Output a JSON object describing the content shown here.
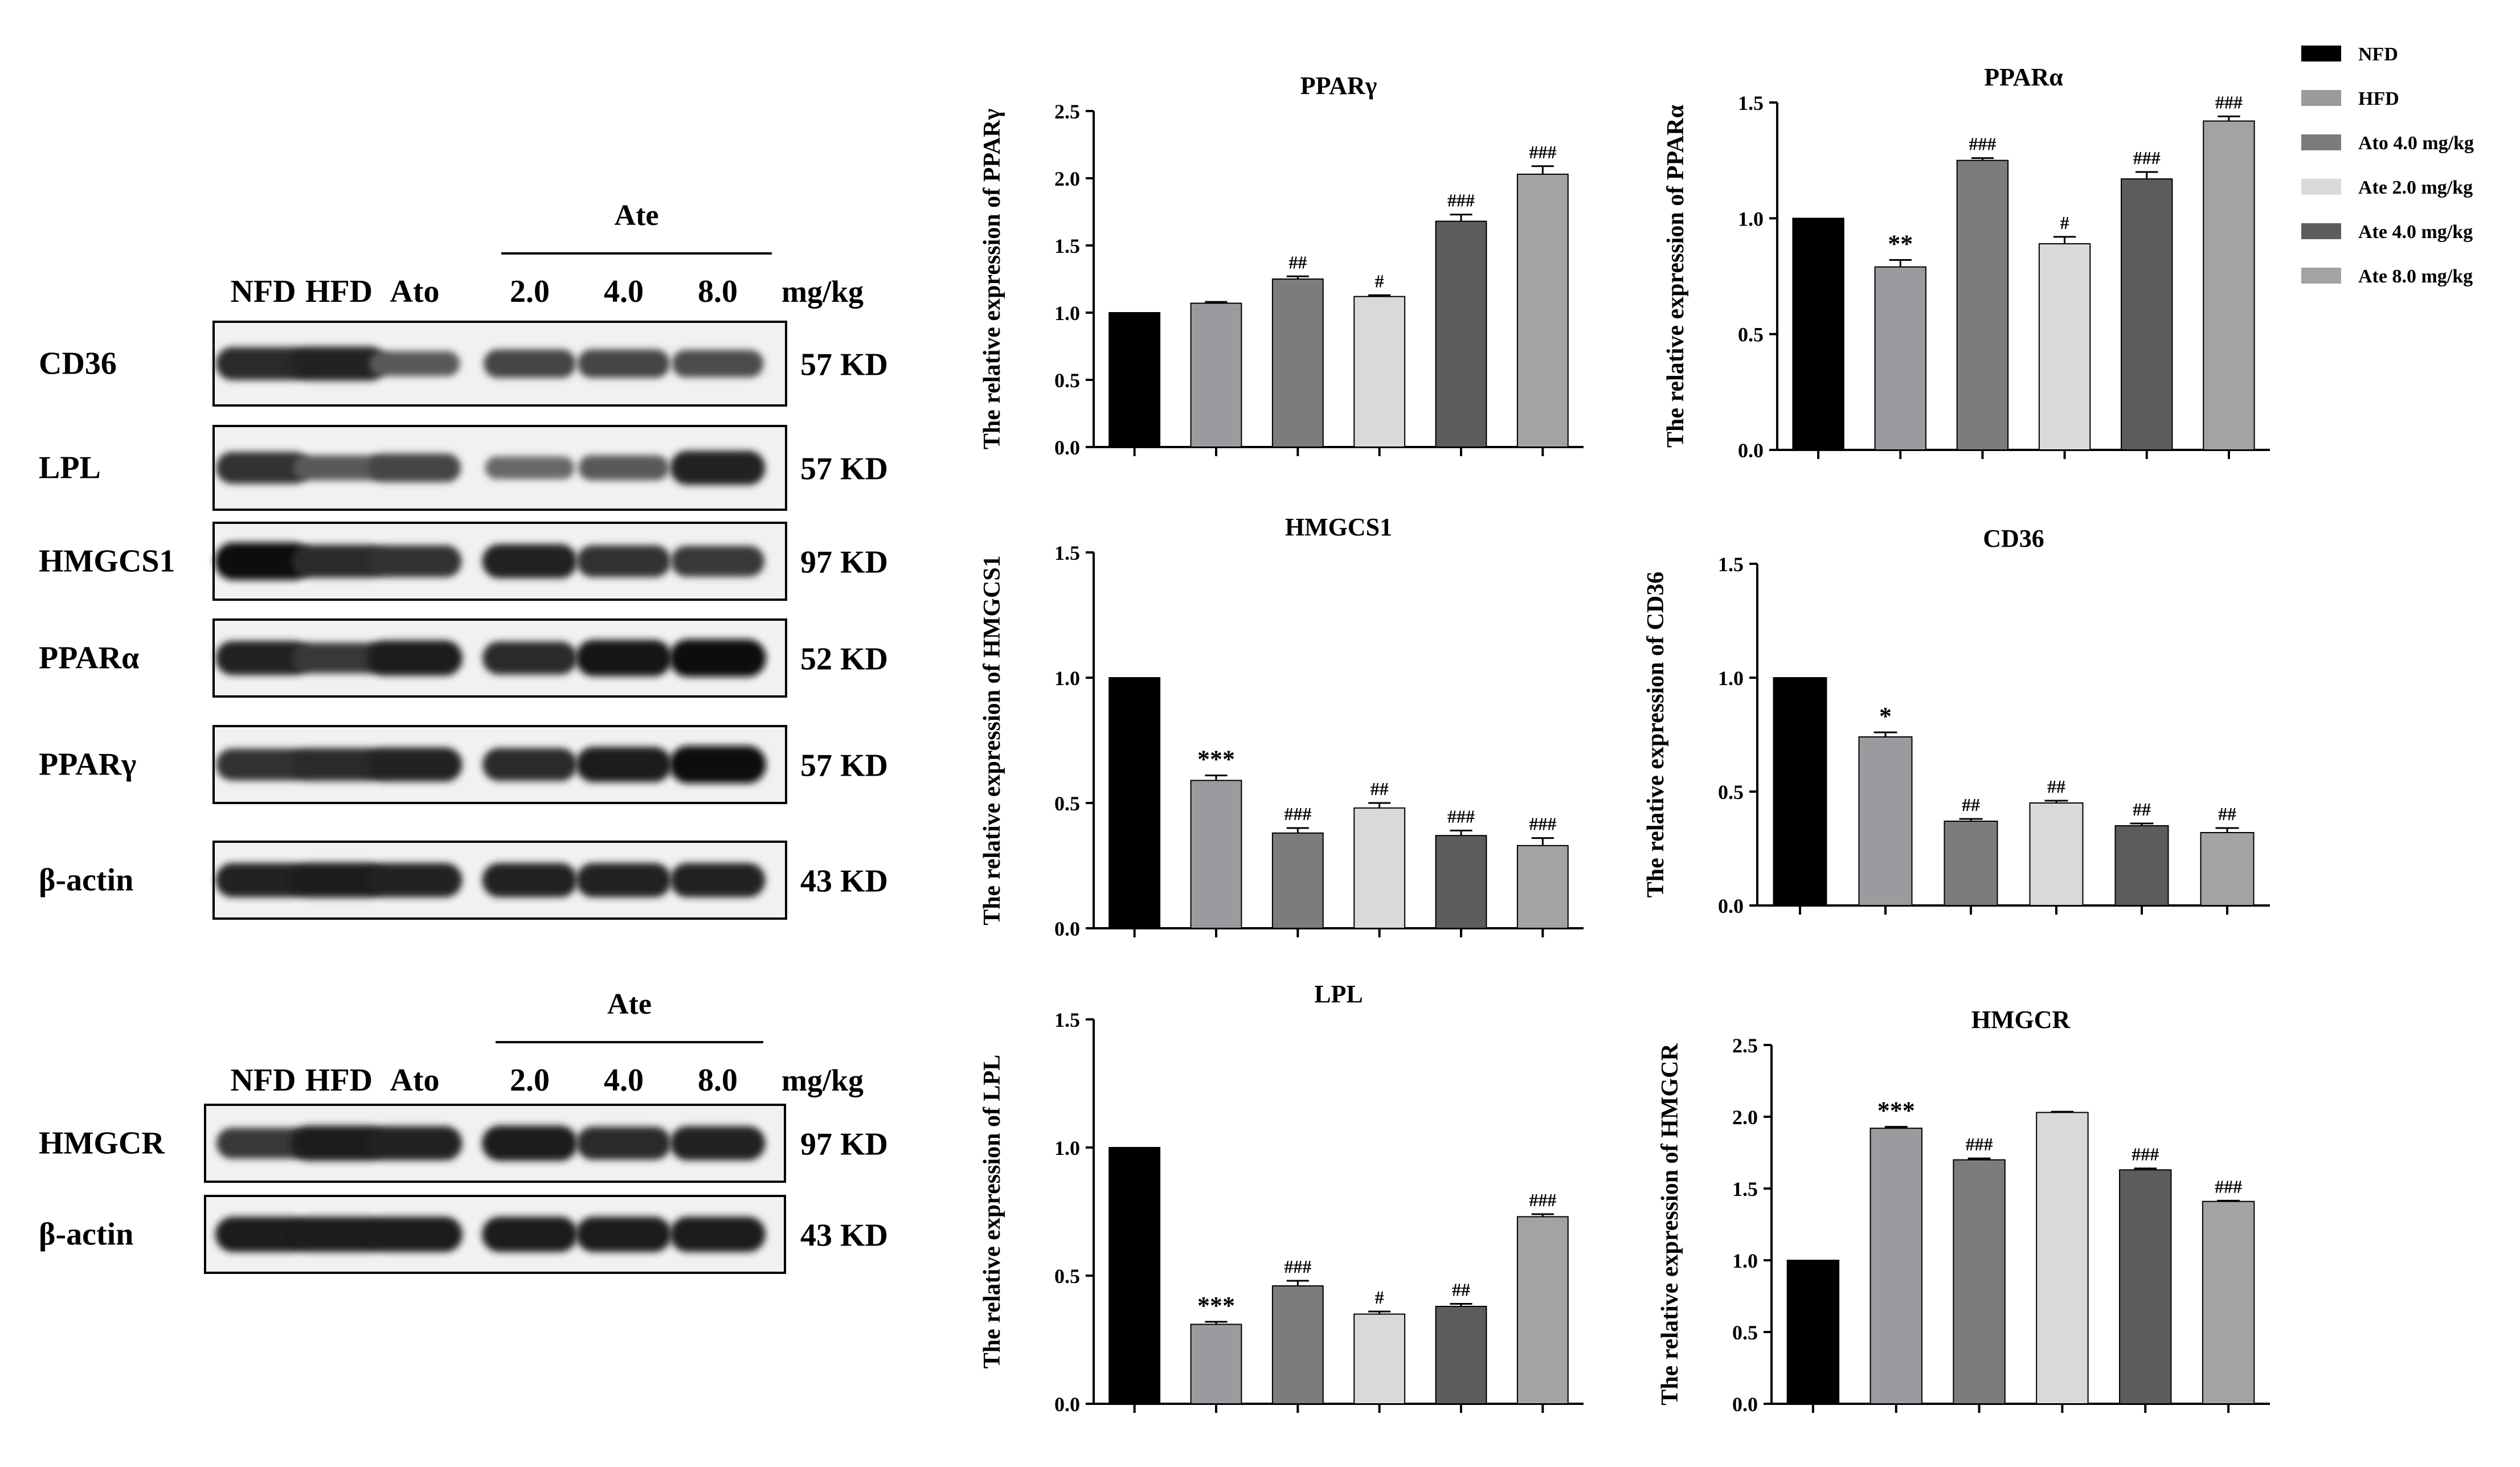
{
  "legend": [
    {
      "name": "NFD",
      "color": "#000000"
    },
    {
      "name": "HFD",
      "color": "#9b9b9f"
    },
    {
      "name": "Ato 4.0 mg/kg",
      "color": "#7c7c7e"
    },
    {
      "name": "Ate 2.0 mg/kg",
      "color": "#d9d9d9"
    },
    {
      "name": "Ate 4.0 mg/kg",
      "color": "#5c5c5e"
    },
    {
      "name": "Ate 8.0 mg/kg",
      "color": "#a3a3a6"
    }
  ],
  "westernBlots": [
    {
      "groupLabel": "Ate",
      "headers": [
        "NFD",
        "HFD",
        "Ato",
        "2.0",
        "4.0",
        "8.0"
      ],
      "unit": "mg/kg",
      "rows": [
        {
          "protein": "CD36",
          "size": "57 KD",
          "intensity": [
            0.8,
            0.85,
            0.45,
            0.6,
            0.6,
            0.55
          ]
        },
        {
          "protein": "LPL",
          "size": "57 KD",
          "intensity": [
            0.75,
            0.45,
            0.6,
            0.35,
            0.45,
            0.85
          ]
        },
        {
          "protein": "HMGCS1",
          "size": "97 KD",
          "intensity": [
            1.0,
            0.8,
            0.75,
            0.85,
            0.75,
            0.7
          ]
        },
        {
          "protein": "PPARα",
          "size": "52 KD",
          "intensity": [
            0.85,
            0.7,
            0.9,
            0.8,
            0.95,
            1.0
          ]
        },
        {
          "protein": "PPARγ",
          "size": "57 KD",
          "intensity": [
            0.75,
            0.8,
            0.85,
            0.8,
            0.9,
            1.0
          ]
        },
        {
          "protein": "β-actin",
          "size": "43 KD",
          "intensity": [
            0.85,
            0.9,
            0.85,
            0.85,
            0.85,
            0.85
          ]
        }
      ]
    },
    {
      "groupLabel": "Ate",
      "headers": [
        "NFD",
        "HFD",
        "Ato",
        "2.0",
        "4.0",
        "8.0"
      ],
      "unit": "mg/kg",
      "rows": [
        {
          "protein": "HMGCR",
          "size": "97 KD",
          "intensity": [
            0.7,
            0.9,
            0.85,
            0.9,
            0.8,
            0.85
          ]
        },
        {
          "protein": "β-actin",
          "size": "43 KD",
          "intensity": [
            0.9,
            0.9,
            0.9,
            0.9,
            0.9,
            0.9
          ]
        }
      ]
    }
  ],
  "chart_data": [
    {
      "type": "bar",
      "title": "PPARγ",
      "ylabel": "The relative expression of PPARγ",
      "xlabel": "",
      "categories": [
        "NFD",
        "HFD",
        "Ato 4.0 mg/kg",
        "Ate 2.0 mg/kg",
        "Ate 4.0 mg/kg",
        "Ate 8.0 mg/kg"
      ],
      "values": [
        1.0,
        1.07,
        1.25,
        1.12,
        1.68,
        2.03
      ],
      "errors": [
        0,
        0.01,
        0.02,
        0.01,
        0.05,
        0.06
      ],
      "annotations": [
        "",
        "",
        "##",
        "#",
        "###",
        "###"
      ],
      "ylim": [
        0,
        2.5
      ],
      "ticks": [
        0.0,
        0.5,
        1.0,
        1.5,
        2.0,
        2.5
      ]
    },
    {
      "type": "bar",
      "title": "PPARα",
      "ylabel": "The relative expression of PPARα",
      "xlabel": "",
      "categories": [
        "NFD",
        "HFD",
        "Ato 4.0 mg/kg",
        "Ate 2.0 mg/kg",
        "Ate 4.0 mg/kg",
        "Ate 8.0 mg/kg"
      ],
      "values": [
        1.0,
        0.79,
        1.25,
        0.89,
        1.17,
        1.42
      ],
      "errors": [
        0,
        0.03,
        0.01,
        0.03,
        0.03,
        0.02
      ],
      "annotations": [
        "",
        "**",
        "###",
        "#",
        "###",
        "###"
      ],
      "ylim": [
        0,
        1.5
      ],
      "ticks": [
        0.0,
        0.5,
        1.0,
        1.5
      ]
    },
    {
      "type": "bar",
      "title": "HMGCS1",
      "ylabel": "The relative expression of HMGCS1",
      "xlabel": "",
      "categories": [
        "NFD",
        "HFD",
        "Ato 4.0 mg/kg",
        "Ate 2.0 mg/kg",
        "Ate 4.0 mg/kg",
        "Ate 8.0 mg/kg"
      ],
      "values": [
        1.0,
        0.59,
        0.38,
        0.48,
        0.37,
        0.33
      ],
      "errors": [
        0,
        0.02,
        0.02,
        0.02,
        0.02,
        0.03
      ],
      "annotations": [
        "",
        "***",
        "###",
        "##",
        "###",
        "###"
      ],
      "ylim": [
        0,
        1.5
      ],
      "ticks": [
        0.0,
        0.5,
        1.0,
        1.5
      ]
    },
    {
      "type": "bar",
      "title": "CD36",
      "ylabel": "The relative expression of CD36",
      "xlabel": "",
      "categories": [
        "NFD",
        "HFD",
        "Ato 4.0 mg/kg",
        "Ate 2.0 mg/kg",
        "Ate 4.0 mg/kg",
        "Ate 8.0 mg/kg"
      ],
      "values": [
        1.0,
        0.74,
        0.37,
        0.45,
        0.35,
        0.32
      ],
      "errors": [
        0,
        0.02,
        0.01,
        0.01,
        0.01,
        0.02
      ],
      "annotations": [
        "",
        "*",
        "##",
        "##",
        "##",
        "##"
      ],
      "ylim": [
        0,
        1.5
      ],
      "ticks": [
        0.0,
        0.5,
        1.0,
        1.5
      ]
    },
    {
      "type": "bar",
      "title": "LPL",
      "ylabel": "The relative expression of LPL",
      "xlabel": "",
      "categories": [
        "NFD",
        "HFD",
        "Ato 4.0 mg/kg",
        "Ate 2.0 mg/kg",
        "Ate 4.0 mg/kg",
        "Ate 8.0 mg/kg"
      ],
      "values": [
        1.0,
        0.31,
        0.46,
        0.35,
        0.38,
        0.73
      ],
      "errors": [
        0,
        0.01,
        0.02,
        0.01,
        0.01,
        0.01
      ],
      "annotations": [
        "",
        "***",
        "###",
        "#",
        "##",
        "###"
      ],
      "ylim": [
        0,
        1.5
      ],
      "ticks": [
        0.0,
        0.5,
        1.0,
        1.5
      ]
    },
    {
      "type": "bar",
      "title": "HMGCR",
      "ylabel": "The relative expression of HMGCR",
      "xlabel": "",
      "categories": [
        "NFD",
        "HFD",
        "Ato 4.0 mg/kg",
        "Ate 2.0 mg/kg",
        "Ate 4.0 mg/kg",
        "Ate 8.0 mg/kg"
      ],
      "values": [
        1.0,
        1.92,
        1.7,
        2.03,
        1.63,
        1.41
      ],
      "errors": [
        0,
        0.01,
        0.01,
        0.005,
        0.01,
        0.005
      ],
      "annotations": [
        "",
        "***",
        "###",
        "",
        "###",
        "###"
      ],
      "ylim": [
        0,
        2.5
      ],
      "ticks": [
        0.0,
        0.5,
        1.0,
        1.5,
        2.0,
        2.5
      ]
    }
  ]
}
